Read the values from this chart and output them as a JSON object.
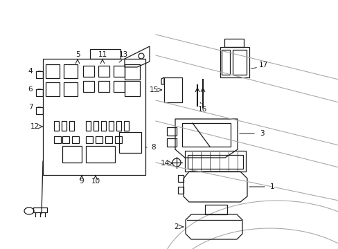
{
  "bg_color": "#ffffff",
  "line_color": "#1a1a1a",
  "gray_color": "#aaaaaa",
  "fig_width": 4.89,
  "fig_height": 3.6,
  "dpi": 100
}
